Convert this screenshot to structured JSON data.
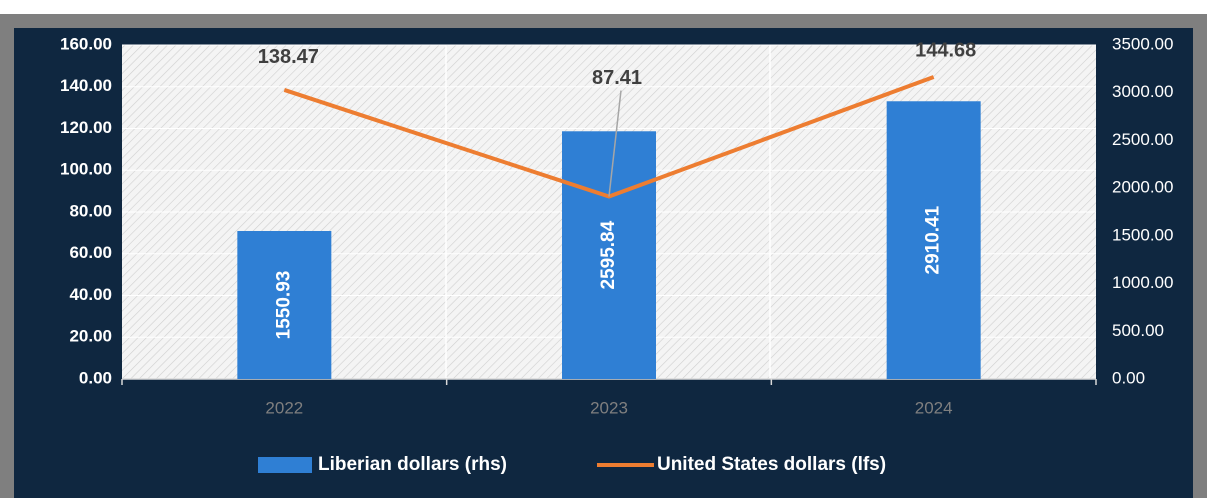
{
  "chart_data": {
    "type": "bar",
    "categories": [
      "2022",
      "2023",
      "2024"
    ],
    "series": [
      {
        "name": "Liberian dollars (rhs)",
        "type": "bar",
        "axis": "y2",
        "color": "#2f7fd4",
        "values": [
          1550.93,
          2595.84,
          2910.41
        ]
      },
      {
        "name": "United States dollars (lfs)",
        "type": "line",
        "axis": "y",
        "color": "#ed7d31",
        "values": [
          138.47,
          87.41,
          144.68
        ]
      }
    ],
    "ylim": [
      0,
      160
    ],
    "yticks": [
      {
        "value": 0,
        "label": "0.00"
      },
      {
        "value": 20,
        "label": "20.00"
      },
      {
        "value": 40,
        "label": "40.00"
      },
      {
        "value": 60,
        "label": "60.00"
      },
      {
        "value": 80,
        "label": "80.00"
      },
      {
        "value": 100,
        "label": "100.00"
      },
      {
        "value": 120,
        "label": "120.00"
      },
      {
        "value": 140,
        "label": "140.00"
      },
      {
        "value": 160,
        "label": "160.00"
      }
    ],
    "y2lim": [
      0,
      3500
    ],
    "y2ticks": [
      {
        "value": 0,
        "label": "0.00"
      },
      {
        "value": 500,
        "label": "500.00"
      },
      {
        "value": 1000,
        "label": "1000.00"
      },
      {
        "value": 1500,
        "label": "1500.00"
      },
      {
        "value": 2000,
        "label": "2000.00"
      },
      {
        "value": 2500,
        "label": "2500.00"
      },
      {
        "value": 3000,
        "label": "3000.00"
      },
      {
        "value": 3500,
        "label": "3500.00"
      }
    ],
    "grid": true,
    "legend": "bottom"
  }
}
